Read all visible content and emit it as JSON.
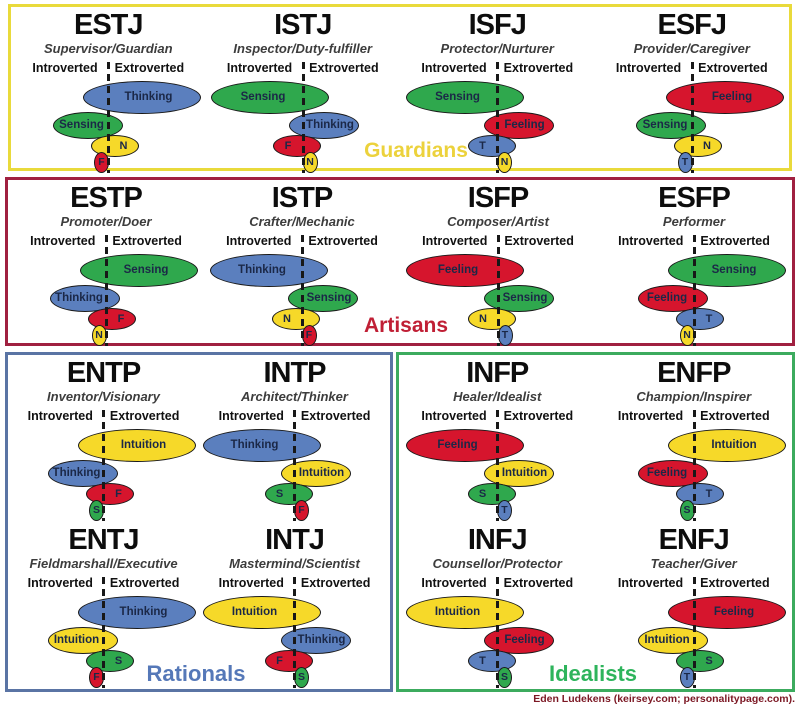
{
  "title": "MBTI personality types cognitive function diagram",
  "axis": {
    "left": "Introverted",
    "right": "Extroverted"
  },
  "credit": "Eden Ludekens (keirsey.com; personalitypage.com).",
  "colors": {
    "thinking": "#5b7fbe",
    "sensing": "#2fa84d",
    "feeling": "#d6152d",
    "intuition": "#f6d929",
    "guardians_border": "#e9da3b",
    "artisans_border": "#a02040",
    "rationals_border": "#5a74a4",
    "idealists_border": "#3cab5e",
    "guardians_label": "#ecd23c",
    "artisans_label": "#c01f35",
    "rationals_label": "#5578b8",
    "idealists_label": "#2eb45c"
  },
  "groups": [
    {
      "id": "guardians",
      "label": "Guardians",
      "types": [
        {
          "name": "ESTJ",
          "subtitle": "Supervisor/Guardian",
          "functions": [
            {
              "label": "Thinking",
              "color": "thinking",
              "side": "right"
            },
            {
              "label": "Sensing",
              "color": "sensing",
              "side": "left"
            },
            {
              "label": "N",
              "color": "intuition",
              "side": "right"
            },
            {
              "label": "F",
              "color": "feeling",
              "side": "left"
            }
          ]
        },
        {
          "name": "ISTJ",
          "subtitle": "Inspector/Duty-fulfiller",
          "functions": [
            {
              "label": "Sensing",
              "color": "sensing",
              "side": "left"
            },
            {
              "label": "Thinking",
              "color": "thinking",
              "side": "right"
            },
            {
              "label": "F",
              "color": "feeling",
              "side": "left"
            },
            {
              "label": "N",
              "color": "intuition",
              "side": "right"
            }
          ]
        },
        {
          "name": "ISFJ",
          "subtitle": "Protector/Nurturer",
          "functions": [
            {
              "label": "Sensing",
              "color": "sensing",
              "side": "left"
            },
            {
              "label": "Feeling",
              "color": "feeling",
              "side": "right"
            },
            {
              "label": "T",
              "color": "thinking",
              "side": "left"
            },
            {
              "label": "N",
              "color": "intuition",
              "side": "right"
            }
          ]
        },
        {
          "name": "ESFJ",
          "subtitle": "Provider/Caregiver",
          "functions": [
            {
              "label": "Feeling",
              "color": "feeling",
              "side": "right"
            },
            {
              "label": "Sensing",
              "color": "sensing",
              "side": "left"
            },
            {
              "label": "N",
              "color": "intuition",
              "side": "right"
            },
            {
              "label": "T",
              "color": "thinking",
              "side": "left"
            }
          ]
        }
      ]
    },
    {
      "id": "artisans",
      "label": "Artisans",
      "types": [
        {
          "name": "ESTP",
          "subtitle": "Promoter/Doer",
          "functions": [
            {
              "label": "Sensing",
              "color": "sensing",
              "side": "right"
            },
            {
              "label": "Thinking",
              "color": "thinking",
              "side": "left"
            },
            {
              "label": "F",
              "color": "feeling",
              "side": "right"
            },
            {
              "label": "N",
              "color": "intuition",
              "side": "left"
            }
          ]
        },
        {
          "name": "ISTP",
          "subtitle": "Crafter/Mechanic",
          "functions": [
            {
              "label": "Thinking",
              "color": "thinking",
              "side": "left"
            },
            {
              "label": "Sensing",
              "color": "sensing",
              "side": "right"
            },
            {
              "label": "N",
              "color": "intuition",
              "side": "left"
            },
            {
              "label": "F",
              "color": "feeling",
              "side": "right"
            }
          ]
        },
        {
          "name": "ISFP",
          "subtitle": "Composer/Artist",
          "functions": [
            {
              "label": "Feeling",
              "color": "feeling",
              "side": "left"
            },
            {
              "label": "Sensing",
              "color": "sensing",
              "side": "right"
            },
            {
              "label": "N",
              "color": "intuition",
              "side": "left"
            },
            {
              "label": "T",
              "color": "thinking",
              "side": "right"
            }
          ]
        },
        {
          "name": "ESFP",
          "subtitle": "Performer",
          "functions": [
            {
              "label": "Sensing",
              "color": "sensing",
              "side": "right"
            },
            {
              "label": "Feeling",
              "color": "feeling",
              "side": "left"
            },
            {
              "label": "T",
              "color": "thinking",
              "side": "right"
            },
            {
              "label": "N",
              "color": "intuition",
              "side": "left"
            }
          ]
        }
      ]
    },
    {
      "id": "rationals",
      "label": "Rationals",
      "types": [
        {
          "name": "ENTP",
          "subtitle": "Inventor/Visionary",
          "functions": [
            {
              "label": "Intuition",
              "color": "intuition",
              "side": "right"
            },
            {
              "label": "Thinking",
              "color": "thinking",
              "side": "left"
            },
            {
              "label": "F",
              "color": "feeling",
              "side": "right"
            },
            {
              "label": "S",
              "color": "sensing",
              "side": "left"
            }
          ]
        },
        {
          "name": "INTP",
          "subtitle": "Architect/Thinker",
          "functions": [
            {
              "label": "Thinking",
              "color": "thinking",
              "side": "left"
            },
            {
              "label": "Intuition",
              "color": "intuition",
              "side": "right"
            },
            {
              "label": "S",
              "color": "sensing",
              "side": "left"
            },
            {
              "label": "F",
              "color": "feeling",
              "side": "right"
            }
          ]
        },
        {
          "name": "ENTJ",
          "subtitle": "Fieldmarshall/Executive",
          "functions": [
            {
              "label": "Thinking",
              "color": "thinking",
              "side": "right"
            },
            {
              "label": "Intuition",
              "color": "intuition",
              "side": "left"
            },
            {
              "label": "S",
              "color": "sensing",
              "side": "right"
            },
            {
              "label": "F",
              "color": "feeling",
              "side": "left"
            }
          ]
        },
        {
          "name": "INTJ",
          "subtitle": "Mastermind/Scientist",
          "functions": [
            {
              "label": "Intuition",
              "color": "intuition",
              "side": "left"
            },
            {
              "label": "Thinking",
              "color": "thinking",
              "side": "right"
            },
            {
              "label": "F",
              "color": "feeling",
              "side": "left"
            },
            {
              "label": "S",
              "color": "sensing",
              "side": "right"
            }
          ]
        }
      ]
    },
    {
      "id": "idealists",
      "label": "Idealists",
      "types": [
        {
          "name": "INFP",
          "subtitle": "Healer/Idealist",
          "functions": [
            {
              "label": "Feeling",
              "color": "feeling",
              "side": "left"
            },
            {
              "label": "Intuition",
              "color": "intuition",
              "side": "right"
            },
            {
              "label": "S",
              "color": "sensing",
              "side": "left"
            },
            {
              "label": "T",
              "color": "thinking",
              "side": "right"
            }
          ]
        },
        {
          "name": "ENFP",
          "subtitle": "Champion/Inspirer",
          "functions": [
            {
              "label": "Intuition",
              "color": "intuition",
              "side": "right"
            },
            {
              "label": "Feeling",
              "color": "feeling",
              "side": "left"
            },
            {
              "label": "T",
              "color": "thinking",
              "side": "right"
            },
            {
              "label": "S",
              "color": "sensing",
              "side": "left"
            }
          ]
        },
        {
          "name": "INFJ",
          "subtitle": "Counsellor/Protector",
          "functions": [
            {
              "label": "Intuition",
              "color": "intuition",
              "side": "left"
            },
            {
              "label": "Feeling",
              "color": "feeling",
              "side": "right"
            },
            {
              "label": "T",
              "color": "thinking",
              "side": "left"
            },
            {
              "label": "S",
              "color": "sensing",
              "side": "right"
            }
          ]
        },
        {
          "name": "ENFJ",
          "subtitle": "Teacher/Giver",
          "functions": [
            {
              "label": "Feeling",
              "color": "feeling",
              "side": "right"
            },
            {
              "label": "Intuition",
              "color": "intuition",
              "side": "left"
            },
            {
              "label": "S",
              "color": "sensing",
              "side": "right"
            },
            {
              "label": "T",
              "color": "thinking",
              "side": "left"
            }
          ]
        }
      ]
    }
  ]
}
